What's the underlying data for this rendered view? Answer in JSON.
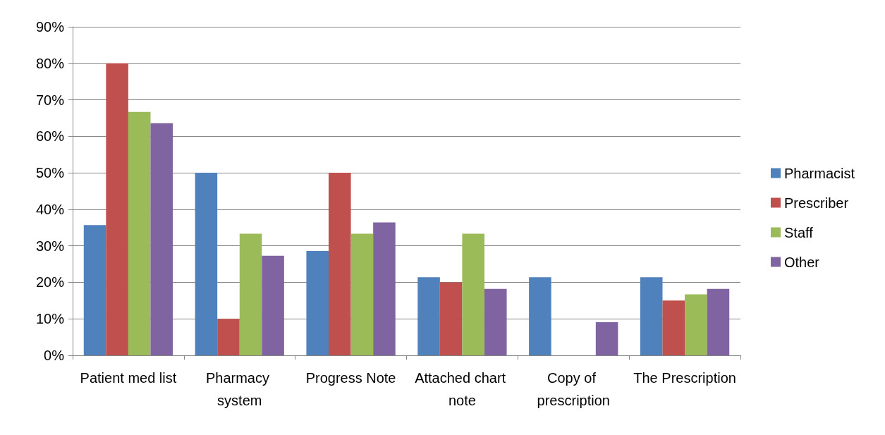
{
  "chart_data": {
    "type": "bar",
    "categories": [
      "Patient med list",
      "Pharmacy system",
      "Progress Note",
      "Attached chart note",
      "Copy of prescription",
      "The Prescription"
    ],
    "series": [
      {
        "name": "Pharmacist",
        "color": "#4f81bd",
        "values": [
          35.7,
          50,
          28.6,
          21.4,
          21.4,
          21.4
        ]
      },
      {
        "name": "Prescriber",
        "color": "#c0504d",
        "values": [
          80,
          10,
          50,
          20,
          0,
          15
        ]
      },
      {
        "name": "Staff",
        "color": "#9bbb59",
        "values": [
          66.7,
          33.3,
          33.3,
          33.3,
          0,
          16.7
        ]
      },
      {
        "name": "Other",
        "color": "#8064a2",
        "values": [
          63.6,
          27.3,
          36.4,
          18.2,
          9.1,
          18.2
        ]
      }
    ],
    "ylim": [
      0,
      90
    ],
    "yticks": [
      {
        "value": 0,
        "label": "0%"
      },
      {
        "value": 10,
        "label": "10%"
      },
      {
        "value": 20,
        "label": "20%"
      },
      {
        "value": 30,
        "label": "30%"
      },
      {
        "value": 40,
        "label": "40%"
      },
      {
        "value": 50,
        "label": "50%"
      },
      {
        "value": 60,
        "label": "60%"
      },
      {
        "value": 70,
        "label": "70%"
      },
      {
        "value": 80,
        "label": "80%"
      },
      {
        "value": 90,
        "label": "90%"
      }
    ],
    "grid": "y",
    "legend": "right"
  }
}
